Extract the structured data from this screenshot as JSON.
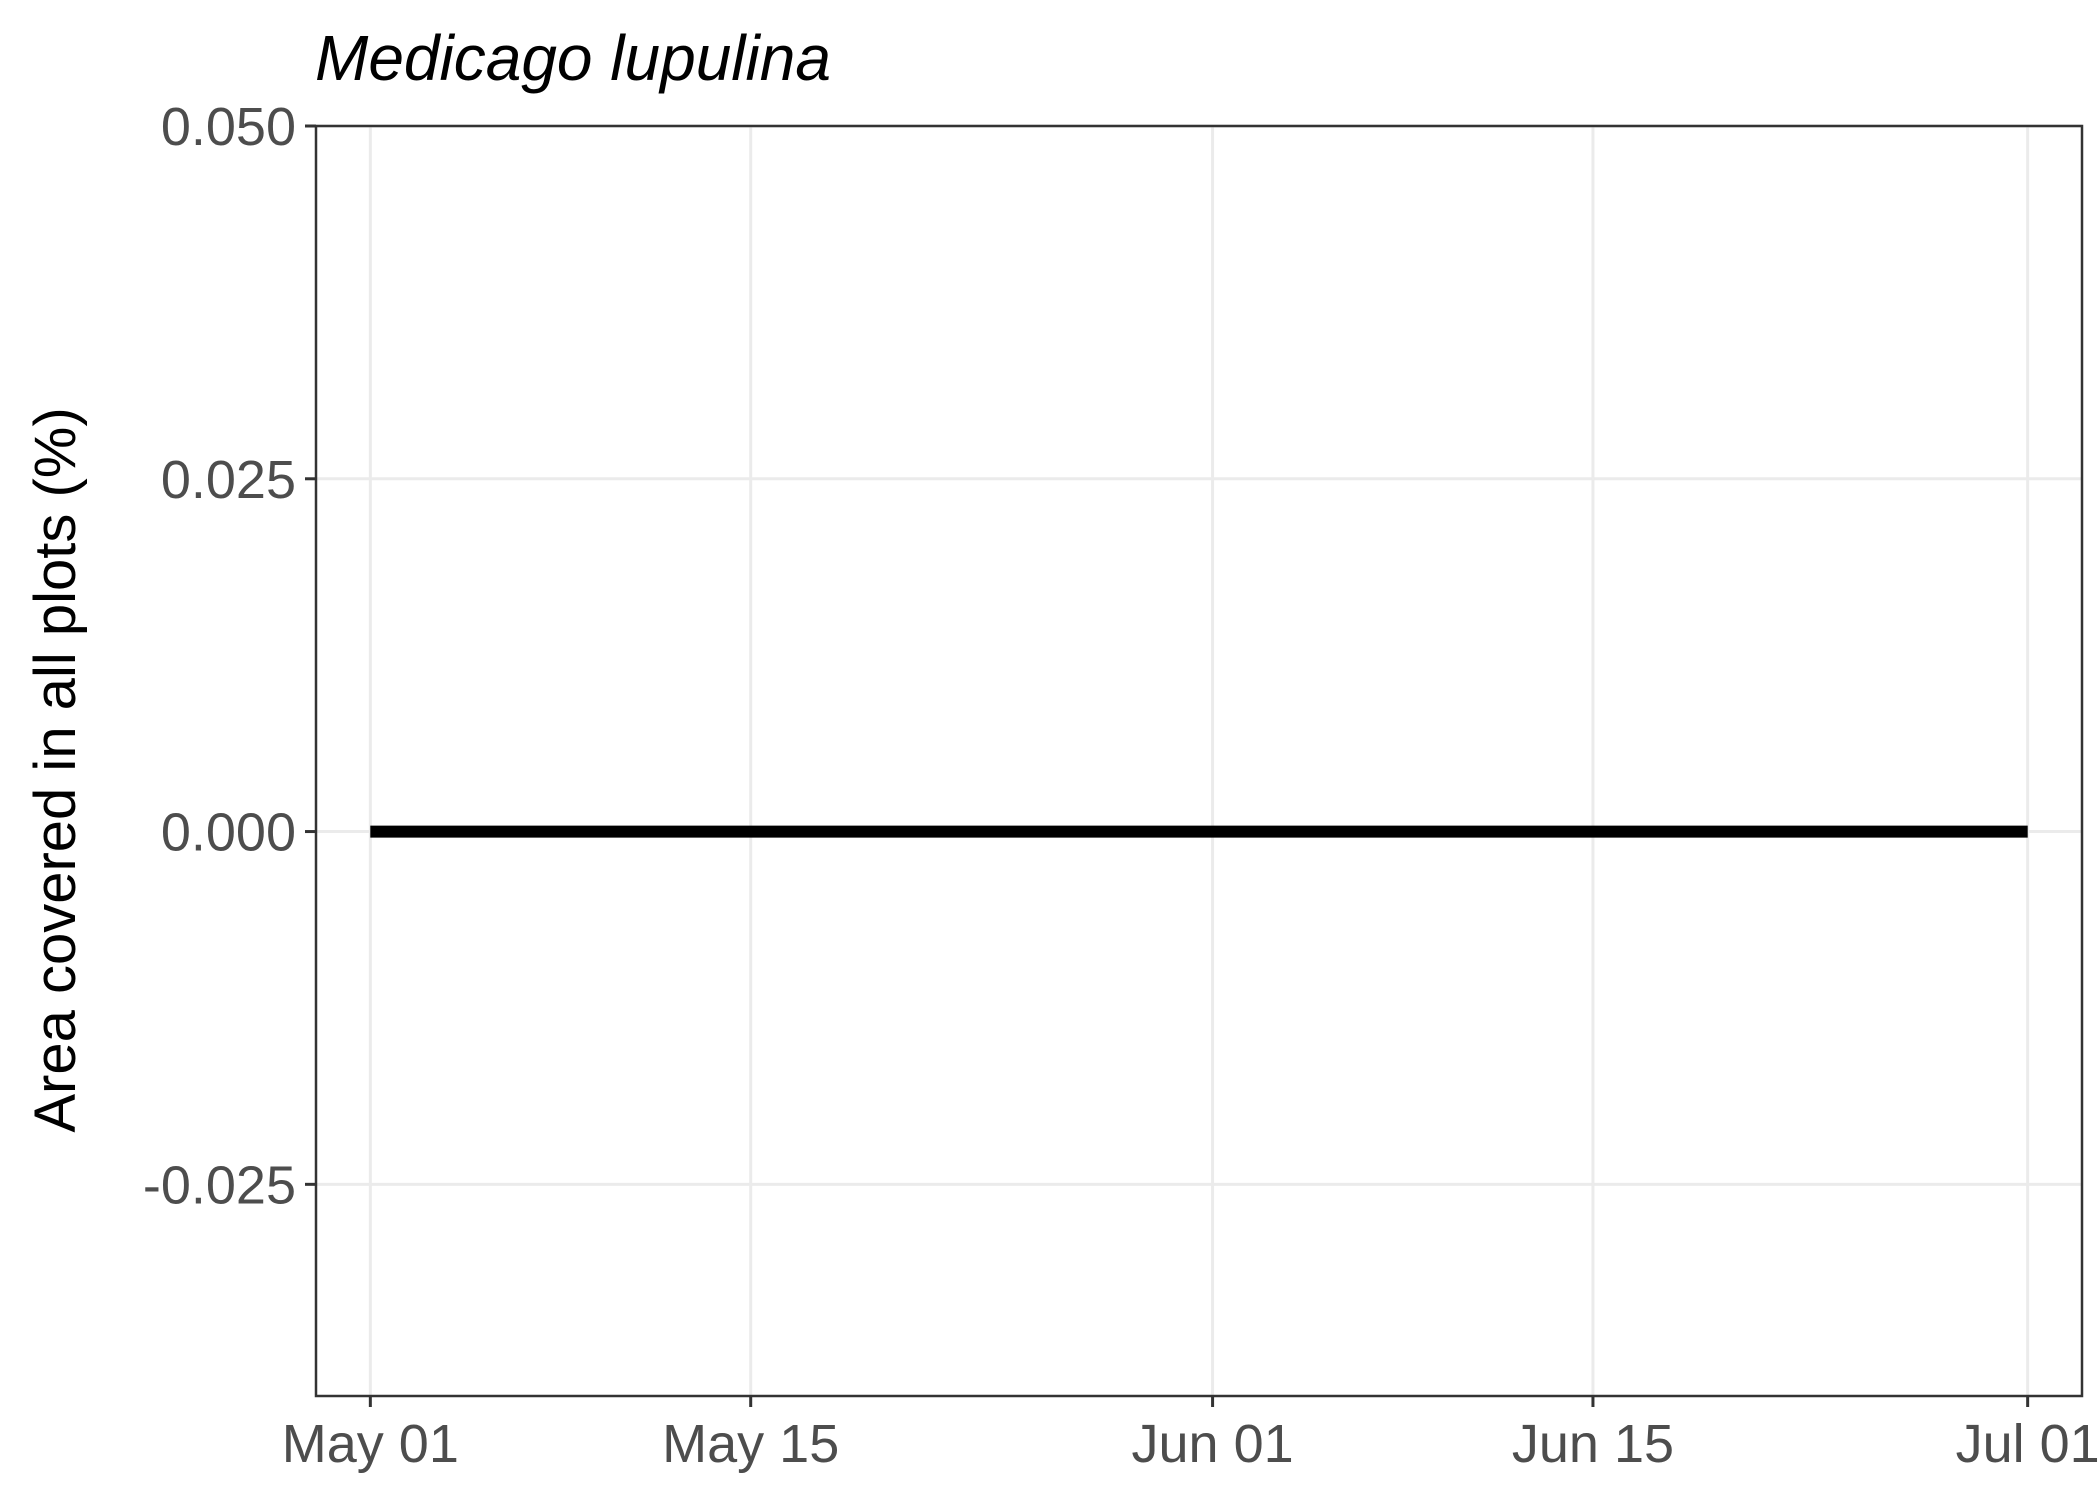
{
  "chart_data": {
    "type": "line",
    "title": "Medicago lupulina",
    "xlabel": "",
    "ylabel": "Area covered in all plots (%)",
    "x_axis_type": "date",
    "xlim": [
      "2023-04-29",
      "2023-07-03"
    ],
    "ylim": [
      -0.04,
      0.05
    ],
    "x_ticks": [
      {
        "value": "2023-05-01",
        "label": "May 01"
      },
      {
        "value": "2023-05-15",
        "label": "May 15"
      },
      {
        "value": "2023-06-01",
        "label": "Jun 01"
      },
      {
        "value": "2023-06-15",
        "label": "Jun 15"
      },
      {
        "value": "2023-07-01",
        "label": "Jul 01"
      }
    ],
    "y_ticks": [
      {
        "value": 0.05,
        "label": "0.050"
      },
      {
        "value": 0.025,
        "label": "0.025"
      },
      {
        "value": 0.0,
        "label": "0.000"
      },
      {
        "value": -0.025,
        "label": "-0.025"
      }
    ],
    "grid": true,
    "series": [
      {
        "color": "#000000",
        "points": [
          {
            "x": "2023-05-01",
            "y": 0.0
          },
          {
            "x": "2023-07-01",
            "y": 0.0
          }
        ]
      }
    ]
  }
}
